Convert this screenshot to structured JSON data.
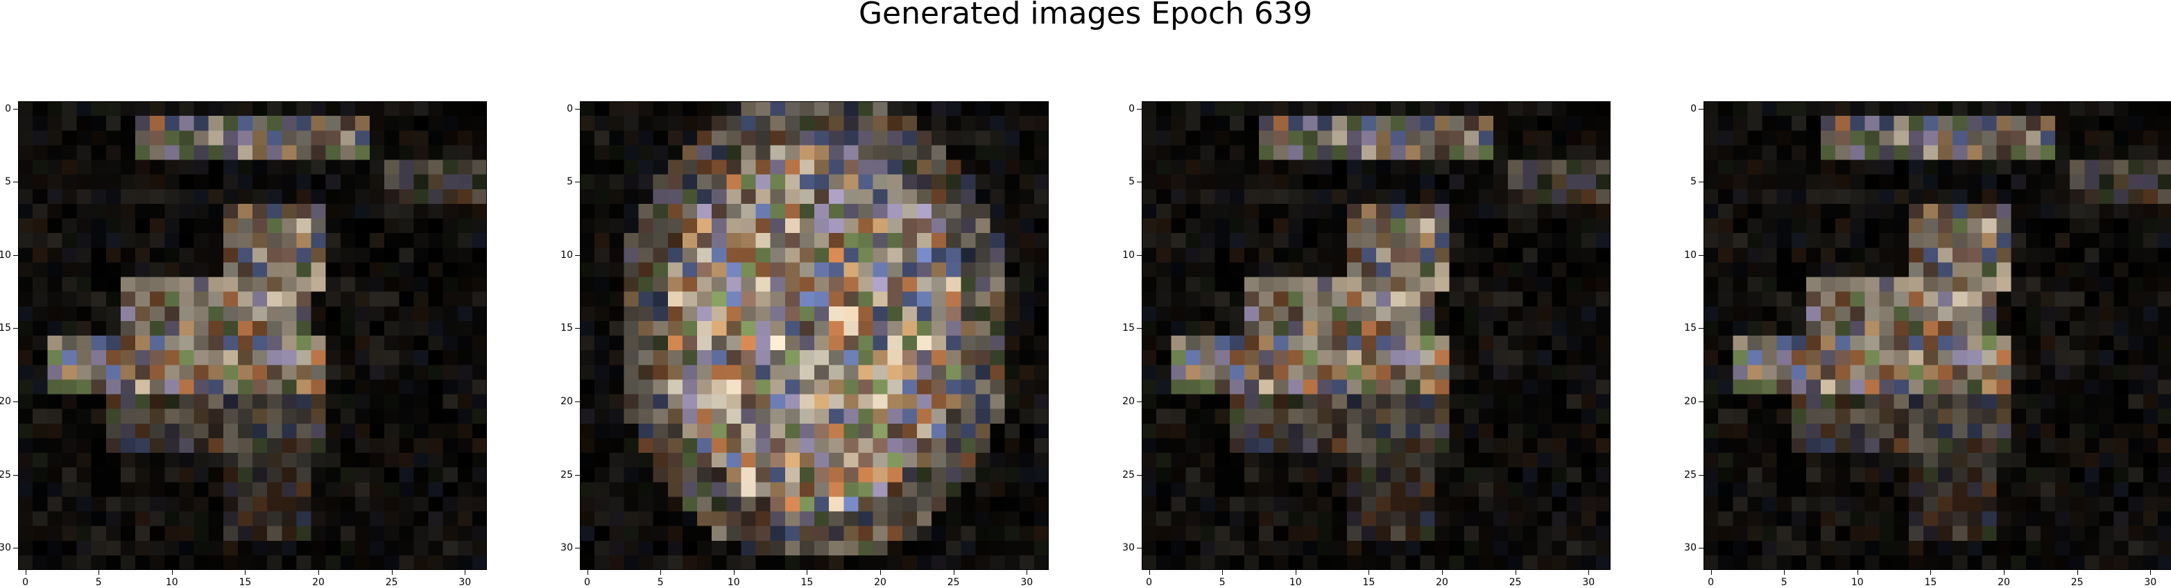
{
  "title": "Generated images Epoch 639",
  "axes": {
    "grid_size": 32,
    "xticks": [
      "0",
      "5",
      "10",
      "15",
      "20",
      "25",
      "30"
    ],
    "yticks": [
      "0",
      "5",
      "10",
      "15",
      "20",
      "25",
      "30"
    ]
  },
  "panels": [
    {
      "name": "generated-image-1",
      "variant": "a"
    },
    {
      "name": "generated-image-2",
      "variant": "b"
    },
    {
      "name": "generated-image-3",
      "variant": "a"
    },
    {
      "name": "generated-image-4",
      "variant": "a"
    }
  ],
  "colors": {
    "background": "#000000",
    "palette": [
      "#d8c4a8",
      "#c49a6c",
      "#a89a88",
      "#9a8fb0",
      "#7a8f58",
      "#c07a4a",
      "#b8b0a0",
      "#e0d0b8",
      "#8a6a5a",
      "#6a7ab0"
    ]
  }
}
